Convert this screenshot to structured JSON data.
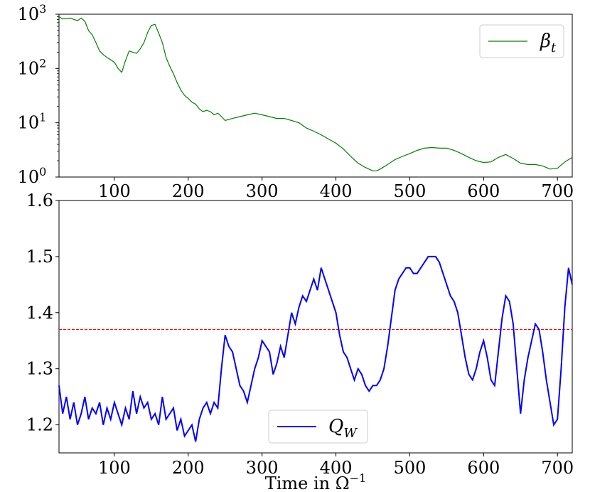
{
  "chart_data": [
    {
      "type": "line",
      "scale": "log",
      "xlim": [
        25,
        720
      ],
      "ylim": [
        1,
        1000
      ],
      "grid": false,
      "legend_position": "top-right",
      "xticks": [
        100,
        200,
        300,
        400,
        500,
        600,
        700
      ],
      "xtick_labels": [
        "100",
        "200",
        "300",
        "400",
        "500",
        "600",
        "700"
      ],
      "yticks": [
        1,
        10,
        100,
        1000
      ],
      "ytick_labels": [
        {
          "base": "10",
          "exp": "0"
        },
        {
          "base": "10",
          "exp": "1"
        },
        {
          "base": "10",
          "exp": "2"
        },
        {
          "base": "10",
          "exp": "3"
        }
      ],
      "series": [
        {
          "name": "β",
          "name_sub": "t",
          "color": "#008000",
          "x": [
            25,
            30,
            40,
            50,
            55,
            60,
            65,
            70,
            75,
            80,
            85,
            90,
            100,
            105,
            110,
            115,
            120,
            125,
            130,
            135,
            140,
            145,
            150,
            155,
            160,
            165,
            170,
            175,
            180,
            185,
            190,
            195,
            200,
            205,
            210,
            215,
            220,
            225,
            230,
            235,
            240,
            245,
            250,
            260,
            270,
            280,
            290,
            300,
            310,
            320,
            330,
            340,
            350,
            360,
            370,
            380,
            390,
            400,
            410,
            420,
            430,
            440,
            450,
            455,
            460,
            470,
            480,
            490,
            500,
            510,
            520,
            530,
            540,
            550,
            560,
            570,
            580,
            590,
            600,
            610,
            620,
            630,
            640,
            650,
            660,
            670,
            680,
            690,
            700,
            710,
            720
          ],
          "y": [
            900,
            820,
            850,
            760,
            850,
            740,
            500,
            420,
            300,
            210,
            180,
            160,
            130,
            100,
            85,
            140,
            210,
            200,
            190,
            230,
            300,
            460,
            620,
            650,
            450,
            300,
            160,
            110,
            80,
            55,
            40,
            32,
            28,
            24,
            22,
            18,
            16,
            17,
            16,
            14,
            15,
            13,
            11,
            12,
            13,
            14,
            15,
            14,
            13,
            12,
            12,
            11,
            10,
            8,
            7,
            6,
            5,
            4.2,
            3.3,
            2.4,
            1.8,
            1.5,
            1.3,
            1.3,
            1.4,
            1.7,
            2.1,
            2.4,
            2.7,
            3.1,
            3.4,
            3.5,
            3.4,
            3.4,
            3.1,
            2.7,
            2.3,
            2.0,
            1.85,
            1.9,
            2.3,
            2.6,
            2.2,
            1.8,
            1.7,
            1.7,
            1.6,
            1.4,
            1.45,
            1.9,
            2.3
          ]
        }
      ]
    },
    {
      "type": "line",
      "scale": "linear",
      "xlim": [
        25,
        720
      ],
      "ylim": [
        1.15,
        1.6
      ],
      "grid": false,
      "legend_position": "bottom-center",
      "xticks": [
        100,
        200,
        300,
        400,
        500,
        600,
        700
      ],
      "xtick_labels": [
        "100",
        "200",
        "300",
        "400",
        "500",
        "600",
        "700"
      ],
      "yticks": [
        1.2,
        1.3,
        1.4,
        1.5,
        1.6
      ],
      "ytick_labels": [
        "1.2",
        "1.3",
        "1.4",
        "1.5",
        "1.6"
      ],
      "xlabel": "Time in Ω",
      "xlabel_sup": "−1",
      "reference_line": {
        "y": 1.37,
        "color": "#ff0000",
        "style": "dashed"
      },
      "series": [
        {
          "name": "Q",
          "name_sub": "W",
          "color": "#0000ff",
          "x": [
            25,
            30,
            35,
            40,
            45,
            50,
            55,
            60,
            65,
            70,
            75,
            80,
            85,
            90,
            95,
            100,
            105,
            110,
            115,
            120,
            125,
            130,
            135,
            140,
            145,
            150,
            155,
            160,
            165,
            170,
            175,
            180,
            185,
            190,
            195,
            200,
            205,
            210,
            215,
            220,
            225,
            230,
            235,
            240,
            245,
            250,
            255,
            260,
            265,
            270,
            275,
            280,
            285,
            290,
            295,
            300,
            305,
            310,
            315,
            320,
            325,
            330,
            335,
            340,
            345,
            350,
            355,
            360,
            365,
            370,
            375,
            380,
            385,
            390,
            395,
            400,
            405,
            410,
            415,
            420,
            425,
            430,
            435,
            440,
            445,
            450,
            455,
            460,
            465,
            470,
            475,
            480,
            485,
            490,
            495,
            500,
            505,
            510,
            515,
            520,
            525,
            530,
            535,
            540,
            545,
            550,
            555,
            560,
            565,
            570,
            575,
            580,
            585,
            590,
            595,
            600,
            605,
            610,
            615,
            620,
            625,
            630,
            635,
            640,
            645,
            650,
            655,
            660,
            665,
            670,
            675,
            680,
            685,
            690,
            695,
            700,
            705,
            710,
            715,
            720
          ],
          "y": [
            1.27,
            1.22,
            1.25,
            1.21,
            1.24,
            1.2,
            1.22,
            1.25,
            1.21,
            1.23,
            1.22,
            1.24,
            1.2,
            1.23,
            1.21,
            1.24,
            1.22,
            1.2,
            1.23,
            1.21,
            1.26,
            1.22,
            1.25,
            1.23,
            1.24,
            1.21,
            1.22,
            1.2,
            1.25,
            1.21,
            1.22,
            1.23,
            1.19,
            1.21,
            1.18,
            1.19,
            1.2,
            1.17,
            1.21,
            1.23,
            1.24,
            1.22,
            1.24,
            1.23,
            1.3,
            1.36,
            1.34,
            1.33,
            1.3,
            1.27,
            1.26,
            1.24,
            1.27,
            1.3,
            1.32,
            1.35,
            1.34,
            1.33,
            1.29,
            1.31,
            1.34,
            1.32,
            1.36,
            1.4,
            1.38,
            1.41,
            1.43,
            1.42,
            1.44,
            1.46,
            1.44,
            1.48,
            1.46,
            1.44,
            1.42,
            1.4,
            1.36,
            1.33,
            1.32,
            1.3,
            1.28,
            1.3,
            1.29,
            1.27,
            1.26,
            1.27,
            1.27,
            1.28,
            1.3,
            1.34,
            1.39,
            1.44,
            1.46,
            1.47,
            1.48,
            1.48,
            1.47,
            1.47,
            1.48,
            1.49,
            1.5,
            1.5,
            1.5,
            1.49,
            1.47,
            1.45,
            1.43,
            1.42,
            1.4,
            1.36,
            1.32,
            1.29,
            1.28,
            1.3,
            1.33,
            1.35,
            1.32,
            1.28,
            1.27,
            1.33,
            1.39,
            1.43,
            1.42,
            1.38,
            1.3,
            1.22,
            1.28,
            1.32,
            1.35,
            1.38,
            1.37,
            1.33,
            1.28,
            1.24,
            1.2,
            1.21,
            1.3,
            1.41,
            1.48,
            1.45
          ]
        }
      ]
    }
  ]
}
